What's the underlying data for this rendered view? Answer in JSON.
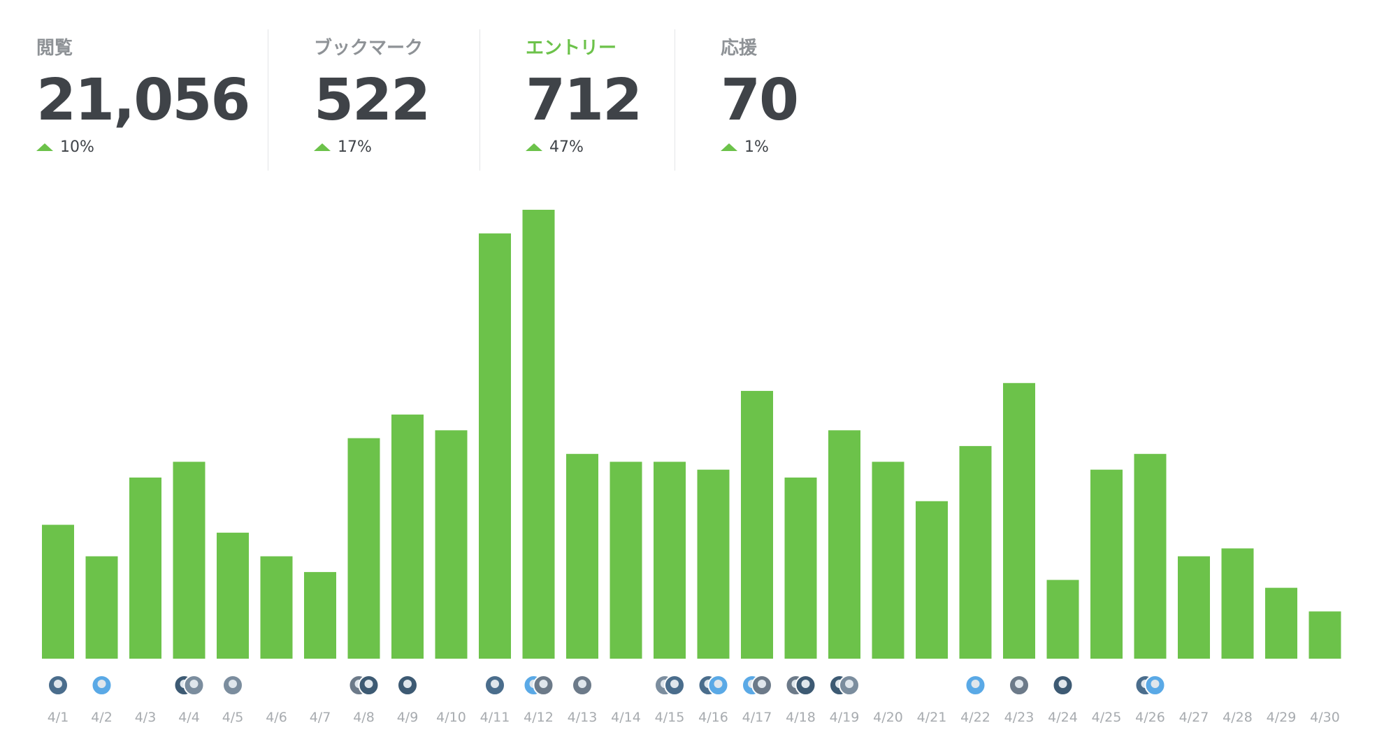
{
  "stats": [
    {
      "label": "閲覧",
      "value": "21,056",
      "change": "10%",
      "active": false
    },
    {
      "label": "ブックマーク",
      "value": "522",
      "change": "17%",
      "active": false
    },
    {
      "label": "エントリー",
      "value": "712",
      "change": "47%",
      "active": true
    },
    {
      "label": "応援",
      "value": "70",
      "change": "1%",
      "active": false
    }
  ],
  "colors": {
    "accent": "#6cc24a",
    "text": "#3f4348",
    "muted": "#8e9296",
    "tick": "#a7abaf"
  },
  "chart_data": {
    "type": "bar",
    "title": "",
    "xlabel": "",
    "ylabel": "",
    "categories": [
      "4/1",
      "4/2",
      "4/3",
      "4/4",
      "4/5",
      "4/6",
      "4/7",
      "4/8",
      "4/9",
      "4/10",
      "4/11",
      "4/12",
      "4/13",
      "4/14",
      "4/15",
      "4/16",
      "4/17",
      "4/18",
      "4/19",
      "4/20",
      "4/21",
      "4/22",
      "4/23",
      "4/24",
      "4/25",
      "4/26",
      "4/27",
      "4/28",
      "4/29",
      "4/30"
    ],
    "values": [
      17,
      13,
      23,
      25,
      16,
      13,
      11,
      28,
      31,
      29,
      54,
      57,
      26,
      25,
      25,
      24,
      34,
      23,
      29,
      25,
      20,
      27,
      35,
      10,
      24,
      26,
      13,
      14,
      9,
      6
    ],
    "avatars_per_day": [
      1,
      1,
      0,
      2,
      1,
      0,
      0,
      2,
      1,
      0,
      1,
      2,
      1,
      0,
      2,
      2,
      2,
      2,
      2,
      0,
      0,
      1,
      1,
      1,
      0,
      2,
      0,
      0,
      0,
      0
    ],
    "grid": false,
    "legend": "none",
    "ylim": [
      0,
      57
    ]
  }
}
